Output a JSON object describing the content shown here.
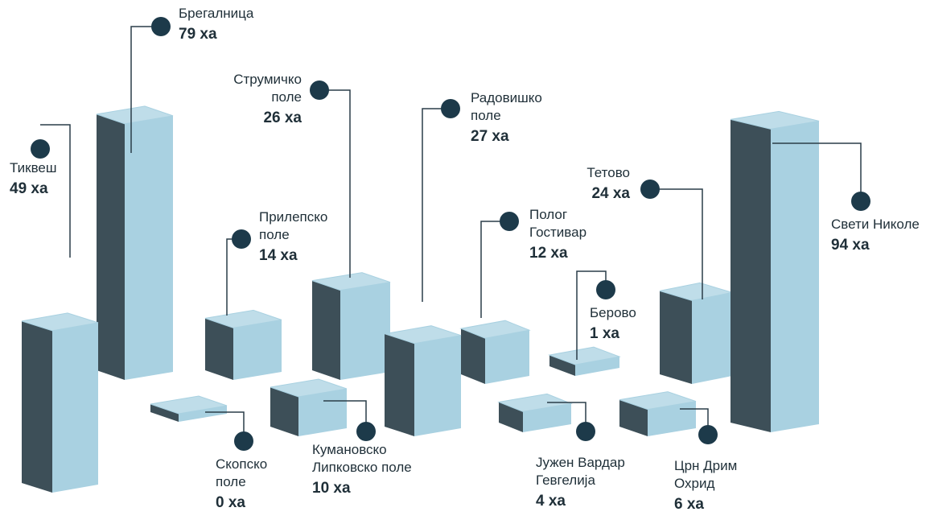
{
  "chart_data": {
    "type": "bar",
    "categories": [
      "Тиквеш",
      "Брегалница",
      "Струмичко\nполе",
      "Радовишко\nполе",
      "Прилепско\nполе",
      "Полог\nГостивар",
      "Берово",
      "Тетово",
      "Свети Николе",
      "Скопско\nполе",
      "Кумановско\nЛипковско поле",
      "Јужен Вардар\nГевгелија",
      "Црн Дрим\nОхрид"
    ],
    "values": [
      49,
      79,
      26,
      27,
      14,
      12,
      1,
      24,
      94,
      0,
      10,
      4,
      6
    ],
    "value_labels": [
      "49 ха",
      "79 ха",
      "26 ха",
      "27 ха",
      "14 ха",
      "12 ха",
      "1 ха",
      "24 ха",
      "94 ха",
      "0 ха",
      "10 ха",
      "4 ха",
      "6 ха"
    ],
    "color": "#a9d1e1"
  }
}
